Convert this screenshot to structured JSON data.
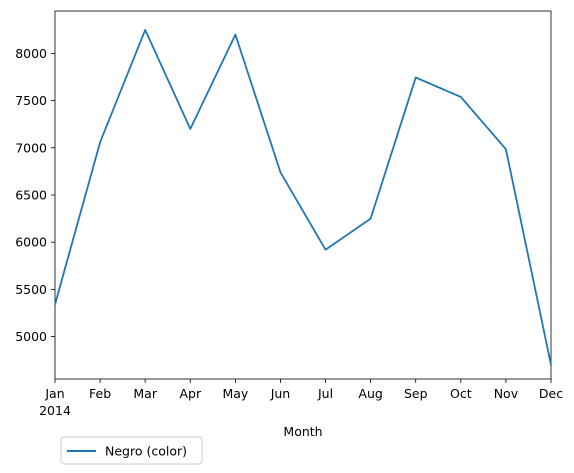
{
  "chart_data": {
    "type": "line",
    "title": "",
    "xlabel": "Month",
    "ylabel": "",
    "categories": [
      "Jan",
      "Feb",
      "Mar",
      "Apr",
      "May",
      "Jun",
      "Jul",
      "Aug",
      "Sep",
      "Oct",
      "Nov",
      "Dec"
    ],
    "year_label": "2014",
    "yticks": [
      5000,
      5500,
      6000,
      6500,
      7000,
      7500,
      8000
    ],
    "ylim": [
      4550,
      8450
    ],
    "grid": false,
    "legend_position": "below-left",
    "series": [
      {
        "name": "Negro (color)",
        "color": "#1f77b4",
        "values": [
          5340,
          7060,
          8250,
          7200,
          8200,
          6740,
          5920,
          6250,
          7745,
          7540,
          6985,
          4700
        ]
      }
    ]
  }
}
